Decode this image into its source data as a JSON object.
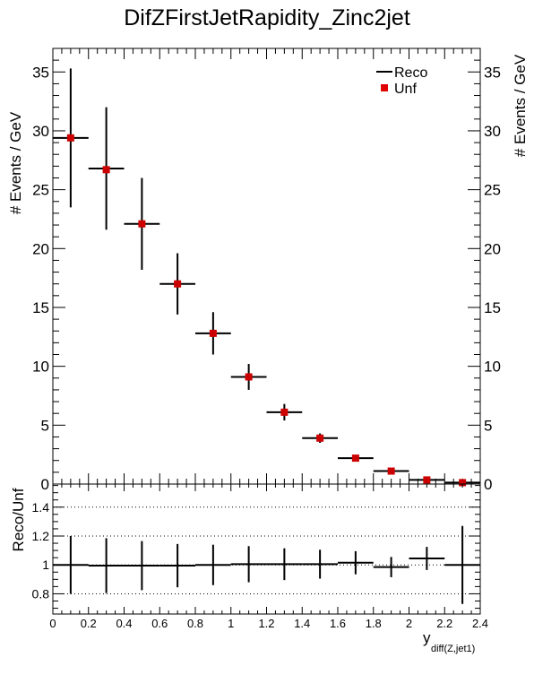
{
  "chart_data": [
    {
      "type": "scatter",
      "panel": "main",
      "title": "DifZFirstJetRapidity_Zinc2jet",
      "ylabel": "# Events / GeV",
      "ylabel_right": "# Events / GeV",
      "xlim": [
        0,
        2.4
      ],
      "ylim": [
        0,
        37
      ],
      "y_ticks": [
        0,
        5,
        10,
        15,
        20,
        25,
        30,
        35
      ],
      "bin_edges": [
        0,
        0.2,
        0.4,
        0.6,
        0.8,
        1.0,
        1.2,
        1.4,
        1.6,
        1.8,
        2.0,
        2.2,
        2.4
      ],
      "legend": {
        "position": "top-right",
        "entries": [
          "Reco",
          "Unf"
        ]
      },
      "series": [
        {
          "name": "Reco",
          "style": "histogram-with-errors",
          "color": "#000000",
          "x": [
            0.1,
            0.3,
            0.5,
            0.7,
            0.9,
            1.1,
            1.3,
            1.5,
            1.7,
            1.9,
            2.1,
            2.3
          ],
          "values": [
            29.4,
            26.8,
            22.1,
            17.0,
            12.8,
            9.1,
            6.1,
            3.9,
            2.2,
            1.1,
            0.35,
            0.12
          ],
          "errors": [
            5.9,
            5.2,
            3.9,
            2.6,
            1.8,
            1.1,
            0.7,
            0.4,
            0.2,
            0.15,
            0.1,
            0.1
          ]
        },
        {
          "name": "Unf",
          "style": "markers",
          "color": "#cc0000",
          "x": [
            0.1,
            0.3,
            0.5,
            0.7,
            0.9,
            1.1,
            1.3,
            1.5,
            1.7,
            1.9,
            2.1,
            2.3
          ],
          "values": [
            29.4,
            26.7,
            22.1,
            17.0,
            12.8,
            9.1,
            6.1,
            3.9,
            2.2,
            1.1,
            0.35,
            0.12
          ]
        }
      ]
    },
    {
      "type": "scatter",
      "panel": "ratio",
      "ylabel": "Reco/Unf",
      "xlabel": "y",
      "xlabel_sub": "diff(Z,jet1)",
      "xlim": [
        0,
        2.4
      ],
      "ylim": [
        0.66,
        1.56
      ],
      "y_ticks": [
        "0.8",
        "1",
        "1.2",
        "1.4"
      ],
      "x_ticks": [
        "0",
        "0.2",
        "0.4",
        "0.6",
        "0.8",
        "1",
        "1.2",
        "1.4",
        "1.6",
        "1.8",
        "2",
        "2.2",
        "2.4"
      ],
      "grid": "dotted horizontal at 0.8, 1, 1.2, 1.4",
      "series": [
        {
          "name": "Reco/Unf",
          "color": "#000000",
          "x": [
            0.1,
            0.3,
            0.5,
            0.7,
            0.9,
            1.1,
            1.3,
            1.5,
            1.7,
            1.9,
            2.1,
            2.3
          ],
          "values": [
            1.0,
            0.995,
            0.995,
            0.995,
            1.0,
            1.005,
            1.005,
            1.005,
            1.015,
            0.985,
            1.045,
            1.0
          ],
          "errors": [
            0.2,
            0.19,
            0.17,
            0.15,
            0.14,
            0.125,
            0.11,
            0.1,
            0.08,
            0.07,
            0.08,
            0.27
          ]
        }
      ]
    }
  ]
}
